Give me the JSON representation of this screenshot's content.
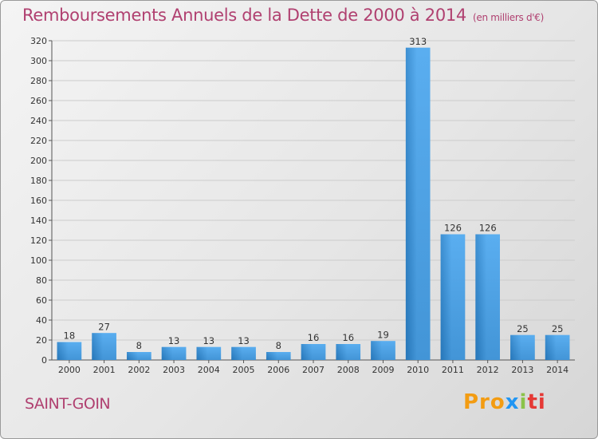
{
  "title": "Remboursements Annuels de la Dette de 2000 à 2014",
  "unit_label": "(en milliers d'€)",
  "place": "SAINT-GOIN",
  "logo": {
    "text": "Proxiti",
    "parts": [
      "Pro",
      "x",
      "i",
      "ti"
    ]
  },
  "colors": {
    "title": "#b04070",
    "bar_light": "#5aaef0",
    "bar_dark": "#2676b8",
    "grid": "#cccccc"
  },
  "chart_data": {
    "type": "bar",
    "categories": [
      "2000",
      "2001",
      "2002",
      "2003",
      "2004",
      "2005",
      "2006",
      "2007",
      "2008",
      "2009",
      "2010",
      "2011",
      "2012",
      "2013",
      "2014"
    ],
    "values": [
      18,
      27,
      8,
      13,
      13,
      13,
      8,
      16,
      16,
      19,
      313,
      126,
      126,
      25,
      25
    ],
    "ylim": [
      0,
      320
    ],
    "yticks": [
      0,
      20,
      40,
      60,
      80,
      100,
      120,
      140,
      160,
      180,
      200,
      220,
      240,
      260,
      280,
      300,
      320
    ],
    "grid": true,
    "xlabel": "",
    "ylabel": ""
  }
}
